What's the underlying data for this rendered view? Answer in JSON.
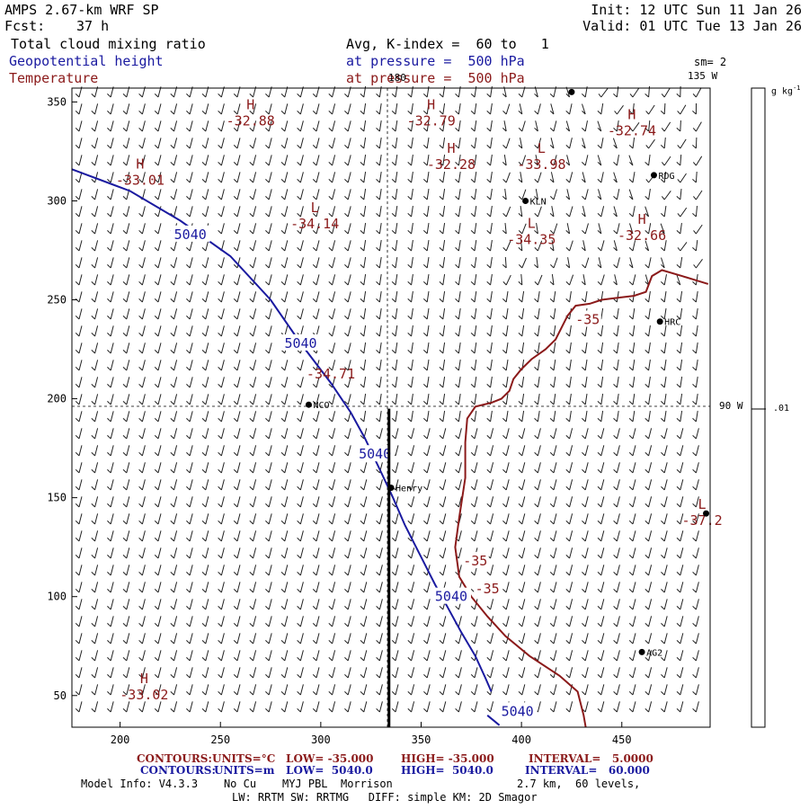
{
  "header": {
    "model": "AMPS 2.67-km WRF SP",
    "fcst_label": "Fcst:",
    "fcst_value": "37 h",
    "init": "Init: 12 UTC Sun 11 Jan 26",
    "valid": "Valid: 01 UTC Tue 13 Jan 26",
    "field1": "Total cloud mixing ratio",
    "field2": "Geopotential height",
    "field3": "Temperature",
    "avg": "Avg, K-index =  60 to   1",
    "pressure1": "at pressure =  500 hPa",
    "pressure2": "at pressure =  500 hPa",
    "sm": "sm= 2"
  },
  "colorbar": {
    "unit": "g kg",
    "unit_sup": "-1",
    "tick": ".01"
  },
  "footer": {
    "row1": {
      "contours": "CONTOURS:",
      "units": "UNITS=°C",
      "low": "LOW= -35.000",
      "high": "HIGH= -35.000",
      "interval": "INTERVAL=   5.0000"
    },
    "row2": {
      "contours": "CONTOURS:",
      "units": "UNITS=m",
      "low": "LOW=  5040.0",
      "high": "HIGH=  5040.0",
      "interval": "INTERVAL=   60.000"
    },
    "model_info": "Model Info: V4.3.3    No Cu    MYJ PBL  Morrison",
    "grid_info": "2.7 km,  60 levels,",
    "physics": "LW: RRTM SW: RRTMG   DIFF: simple KM: 2D Smagor"
  },
  "colors": {
    "height": "#1a1aa0",
    "temperature": "#8b1a1a",
    "text": "#000000"
  },
  "chart_data": {
    "type": "line",
    "xlim": [
      176,
      494
    ],
    "ylim": [
      34,
      357
    ],
    "x_ticks": [
      200,
      250,
      300,
      350,
      400,
      450
    ],
    "y_ticks": [
      50,
      100,
      150,
      200,
      250,
      300,
      350
    ],
    "meridian_labels": [
      {
        "text": "180",
        "lon": 180
      },
      {
        "text": "135 W",
        "lon": 135
      },
      {
        "text": "90 W",
        "lon": 90
      }
    ],
    "height_contour": {
      "name": "5040",
      "points": [
        [
          176,
          316
        ],
        [
          205,
          305
        ],
        [
          230,
          290
        ],
        [
          255,
          272
        ],
        [
          275,
          250
        ],
        [
          290,
          228
        ],
        [
          305,
          208
        ],
        [
          315,
          193
        ],
        [
          322,
          180
        ],
        [
          330,
          163
        ],
        [
          336,
          150
        ],
        [
          342,
          136
        ],
        [
          350,
          120
        ],
        [
          357,
          106
        ],
        [
          363,
          95
        ],
        [
          370,
          82
        ],
        [
          377,
          70
        ],
        [
          382,
          59
        ],
        [
          385,
          52
        ]
      ],
      "tail": [
        [
          383,
          40
        ],
        [
          389,
          35
        ]
      ],
      "labels": [
        {
          "text": "5040",
          "x": 235,
          "y": 283
        },
        {
          "text": "5040",
          "x": 290,
          "y": 228
        },
        {
          "text": "5040",
          "x": 327,
          "y": 172
        },
        {
          "text": "5040",
          "x": 365,
          "y": 100
        },
        {
          "text": "5040",
          "x": 398,
          "y": 42
        }
      ]
    },
    "temp_contour": {
      "name": "-35",
      "points": [
        [
          493,
          258
        ],
        [
          480,
          262
        ],
        [
          470,
          265
        ],
        [
          465,
          262
        ],
        [
          462,
          254
        ],
        [
          456,
          252
        ],
        [
          448,
          251
        ],
        [
          440,
          250
        ],
        [
          434,
          248
        ],
        [
          427,
          247
        ],
        [
          423,
          242
        ],
        [
          420,
          236
        ],
        [
          417,
          230
        ],
        [
          412,
          225
        ],
        [
          405,
          220
        ],
        [
          400,
          215
        ],
        [
          396,
          210
        ],
        [
          394,
          204
        ],
        [
          390,
          200
        ],
        [
          385,
          198
        ],
        [
          377,
          196
        ],
        [
          373,
          190
        ],
        [
          372,
          178
        ],
        [
          372,
          160
        ],
        [
          369,
          140
        ],
        [
          367,
          125
        ],
        [
          369,
          110
        ],
        [
          375,
          100
        ],
        [
          383,
          90
        ],
        [
          392,
          80
        ],
        [
          404,
          70
        ],
        [
          419,
          60
        ],
        [
          428,
          52
        ],
        [
          431,
          40
        ],
        [
          432,
          34
        ]
      ],
      "labels": [
        {
          "text": "-35",
          "x": 433,
          "y": 240
        },
        {
          "text": "-35",
          "x": 377,
          "y": 118
        },
        {
          "text": "-35",
          "x": 383,
          "y": 104
        }
      ]
    },
    "highs_lows": [
      {
        "type": "H",
        "value": "-32.88",
        "x": 265,
        "y": 340
      },
      {
        "type": "H",
        "value": "-32.79",
        "x": 355,
        "y": 340
      },
      {
        "type": "H",
        "value": "-32.74",
        "x": 455,
        "y": 335
      },
      {
        "type": "H",
        "value": "-33.01",
        "x": 210,
        "y": 310
      },
      {
        "type": "H",
        "value": "-32.28",
        "x": 365,
        "y": 318
      },
      {
        "type": "L",
        "value": "-33.98",
        "x": 410,
        "y": 318
      },
      {
        "type": "L",
        "value": "-34.14",
        "x": 297,
        "y": 288
      },
      {
        "type": "L",
        "value": "-34.35",
        "x": 405,
        "y": 280
      },
      {
        "type": "H",
        "value": "-32.66",
        "x": 460,
        "y": 282
      },
      {
        "type": "",
        "value": "-34.71",
        "x": 305,
        "y": 212
      },
      {
        "type": "L",
        "value": "-37.2",
        "x": 490,
        "y": 138
      },
      {
        "type": "H",
        "value": "-33.02",
        "x": 212,
        "y": 50
      }
    ],
    "stations": [
      {
        "name": "NCO",
        "x": 294,
        "y": 197
      },
      {
        "name": "KLN",
        "x": 402,
        "y": 300
      },
      {
        "name": "RDG",
        "x": 466,
        "y": 313
      },
      {
        "name": "HRC",
        "x": 469,
        "y": 239
      },
      {
        "name": "Henry",
        "x": 335,
        "y": 155
      },
      {
        "name": "AG2",
        "x": 460,
        "y": 72
      },
      {
        "name": "",
        "x": 425,
        "y": 355
      },
      {
        "name": "",
        "x": 492,
        "y": 142
      }
    ],
    "section_line": {
      "x": 334,
      "y_from": 34,
      "y_to": 195
    }
  }
}
